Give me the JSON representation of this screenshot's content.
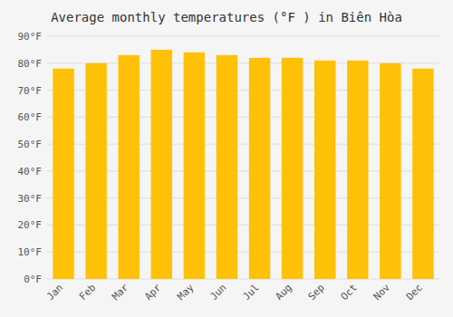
{
  "chart_data": {
    "type": "bar",
    "title": "Average monthly temperatures (°F ) in Biên Hòa",
    "categories": [
      "Jan",
      "Feb",
      "Mar",
      "Apr",
      "May",
      "Jun",
      "Jul",
      "Aug",
      "Sep",
      "Oct",
      "Nov",
      "Dec"
    ],
    "values": [
      78,
      80,
      83,
      85,
      84,
      83,
      82,
      82,
      81,
      81,
      80,
      78
    ],
    "color": "#FFC107",
    "ylim": [
      0,
      90
    ],
    "yticks": [
      {
        "value": 0,
        "label": "0°F"
      },
      {
        "value": 10,
        "label": "10°F"
      },
      {
        "value": 20,
        "label": "20°F"
      },
      {
        "value": 30,
        "label": "30°F"
      },
      {
        "value": 40,
        "label": "40°F"
      },
      {
        "value": 50,
        "label": "50°F"
      },
      {
        "value": 60,
        "label": "60°F"
      },
      {
        "value": 70,
        "label": "70°F"
      },
      {
        "value": 80,
        "label": "80°F"
      },
      {
        "value": 90,
        "label": "90°F"
      }
    ],
    "grid": true
  }
}
